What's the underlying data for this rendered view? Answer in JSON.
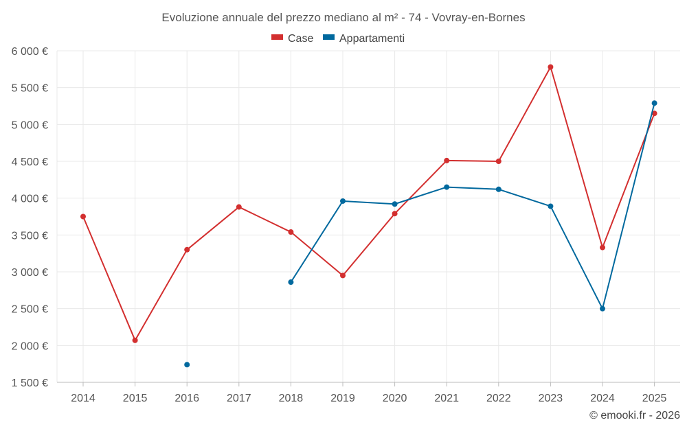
{
  "chart_data": {
    "type": "line",
    "title": "Evoluzione annuale del prezzo mediano al m² - 74 - Vovray-en-Bornes",
    "categories": [
      "2014",
      "2015",
      "2016",
      "2017",
      "2018",
      "2019",
      "2020",
      "2021",
      "2022",
      "2023",
      "2024",
      "2025"
    ],
    "series": [
      {
        "name": "Case",
        "color": "#d32f2f",
        "values": [
          3750,
          2070,
          3300,
          3880,
          3540,
          2950,
          3790,
          4510,
          4500,
          5780,
          3330,
          5150
        ]
      },
      {
        "name": "Appartamenti",
        "color": "#01699e",
        "values": [
          null,
          null,
          1740,
          null,
          2860,
          3960,
          3920,
          4150,
          4120,
          3890,
          2500,
          5290
        ]
      }
    ],
    "yticks": [
      "1 500 €",
      "2 000 €",
      "2 500 €",
      "3 000 €",
      "3 500 €",
      "4 000 €",
      "4 500 €",
      "5 000 €",
      "5 500 €",
      "6 000 €"
    ],
    "ytick_values": [
      1500,
      2000,
      2500,
      3000,
      3500,
      4000,
      4500,
      5000,
      5500,
      6000
    ],
    "ylim": [
      1500,
      6000
    ],
    "xlabel": "",
    "ylabel": "",
    "legend_position": "top-center",
    "credit": "© emooki.fr - 2026"
  }
}
